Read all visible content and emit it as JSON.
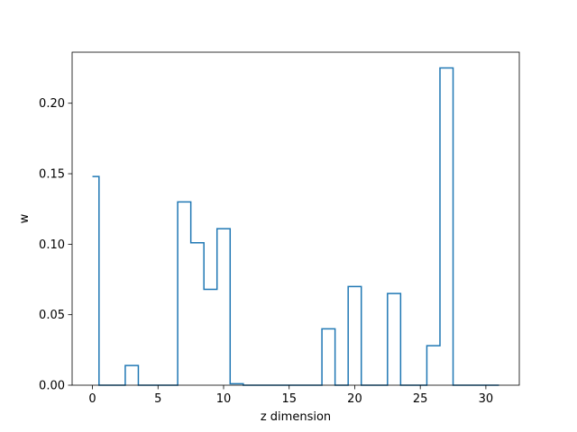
{
  "chart_data": {
    "type": "line",
    "drawstyle": "steps-mid",
    "title": "",
    "xlabel": "z dimension",
    "ylabel": "w",
    "xlim": [
      -1.55,
      32.55
    ],
    "ylim": [
      0.0,
      0.2362
    ],
    "xticks": [
      0,
      5,
      10,
      15,
      20,
      25,
      30
    ],
    "xtick_labels": [
      "0",
      "5",
      "10",
      "15",
      "20",
      "25",
      "30"
    ],
    "yticks": [
      0.0,
      0.05,
      0.1,
      0.15,
      0.2
    ],
    "ytick_labels": [
      "0.00",
      "0.05",
      "0.10",
      "0.15",
      "0.20"
    ],
    "grid": false,
    "legend": false,
    "series": [
      {
        "color": "#1f77b4",
        "x": [
          0,
          1,
          2,
          3,
          4,
          5,
          6,
          7,
          8,
          9,
          10,
          11,
          12,
          13,
          14,
          15,
          16,
          17,
          18,
          19,
          20,
          21,
          22,
          23,
          24,
          25,
          26,
          27,
          28,
          29,
          30,
          31
        ],
        "y": [
          0.148,
          0.0,
          0.0,
          0.014,
          0.0,
          0.0,
          0.0,
          0.13,
          0.101,
          0.068,
          0.111,
          0.001,
          0.0,
          0.0,
          0.0,
          0.0,
          0.0,
          0.0,
          0.04,
          0.0,
          0.07,
          0.0,
          0.0,
          0.065,
          0.0,
          0.0,
          0.028,
          0.225,
          0.0,
          0.0,
          0.0,
          0.0
        ]
      }
    ]
  }
}
